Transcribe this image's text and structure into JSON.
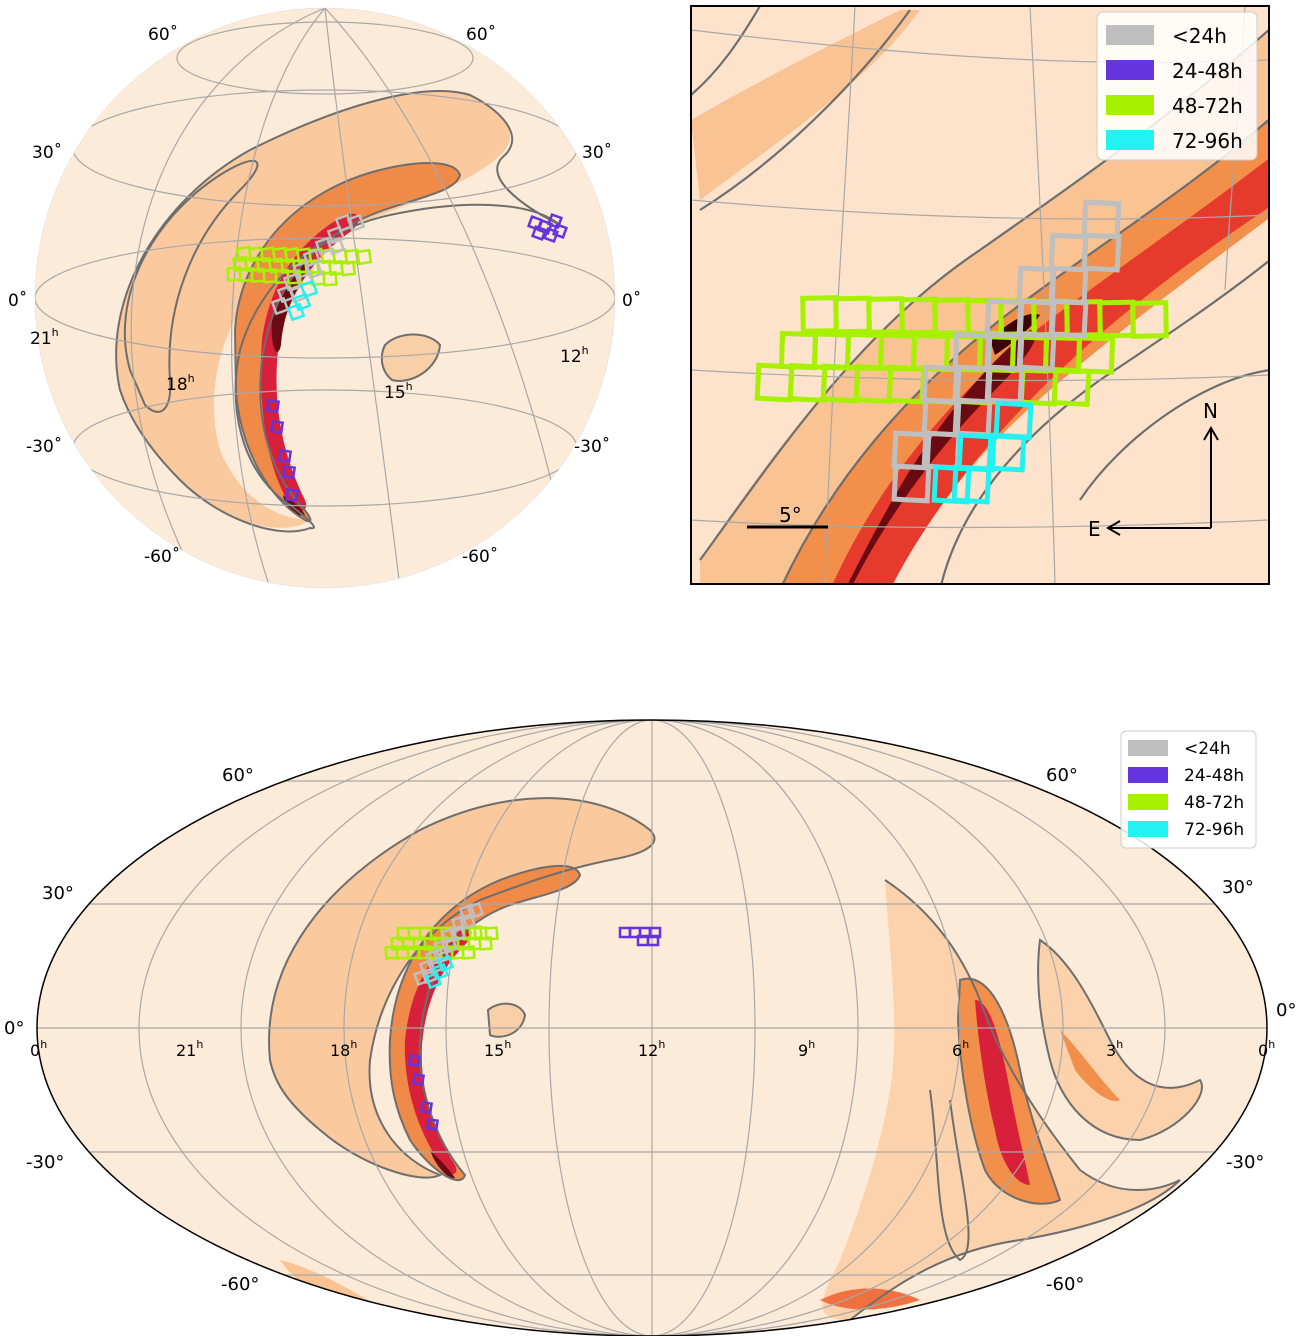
{
  "colors": {
    "background_sky": "#fdebd9",
    "prob_low": "#f9c89b",
    "prob_mid": "#f28f4a",
    "prob_high": "#e8402a",
    "prob_peak": "#6b0a12",
    "contour": "#6e6e6e",
    "grid": "#a8a8a8"
  },
  "legend": [
    {
      "label": "<24h",
      "color": "#bfbfbf"
    },
    {
      "label": "24-48h",
      "color": "#6633dd"
    },
    {
      "label": "48-72h",
      "color": "#a6f000"
    },
    {
      "label": "72-96h",
      "color": "#22f2f2"
    }
  ],
  "orthographic": {
    "dec_labels": [
      "60˚",
      "60˚",
      "30˚",
      "30˚",
      "0˚",
      "0˚",
      "-30˚",
      "-30˚",
      "-60˚",
      "-60˚"
    ],
    "ra_labels": [
      {
        "hours": "21",
        "sup": "h"
      },
      {
        "hours": "18",
        "sup": "h"
      },
      {
        "hours": "15",
        "sup": "h"
      },
      {
        "hours": "12",
        "sup": "h"
      }
    ]
  },
  "zoom": {
    "scale_bar_label": "5°",
    "north_label": "N",
    "east_label": "E"
  },
  "mollweide": {
    "dec_labels_left": [
      "60°",
      "30°",
      "0°",
      "-30°",
      "-60°"
    ],
    "dec_labels_right": [
      "60°",
      "30°",
      "0°",
      "-30°",
      "-60°"
    ],
    "ra_labels": [
      {
        "hours": "0",
        "sup": "h"
      },
      {
        "hours": "21",
        "sup": "h"
      },
      {
        "hours": "18",
        "sup": "h"
      },
      {
        "hours": "15",
        "sup": "h"
      },
      {
        "hours": "12",
        "sup": "h"
      },
      {
        "hours": "9",
        "sup": "h"
      },
      {
        "hours": "6",
        "sup": "h"
      },
      {
        "hours": "3",
        "sup": "h"
      },
      {
        "hours": "0",
        "sup": "h"
      }
    ]
  }
}
